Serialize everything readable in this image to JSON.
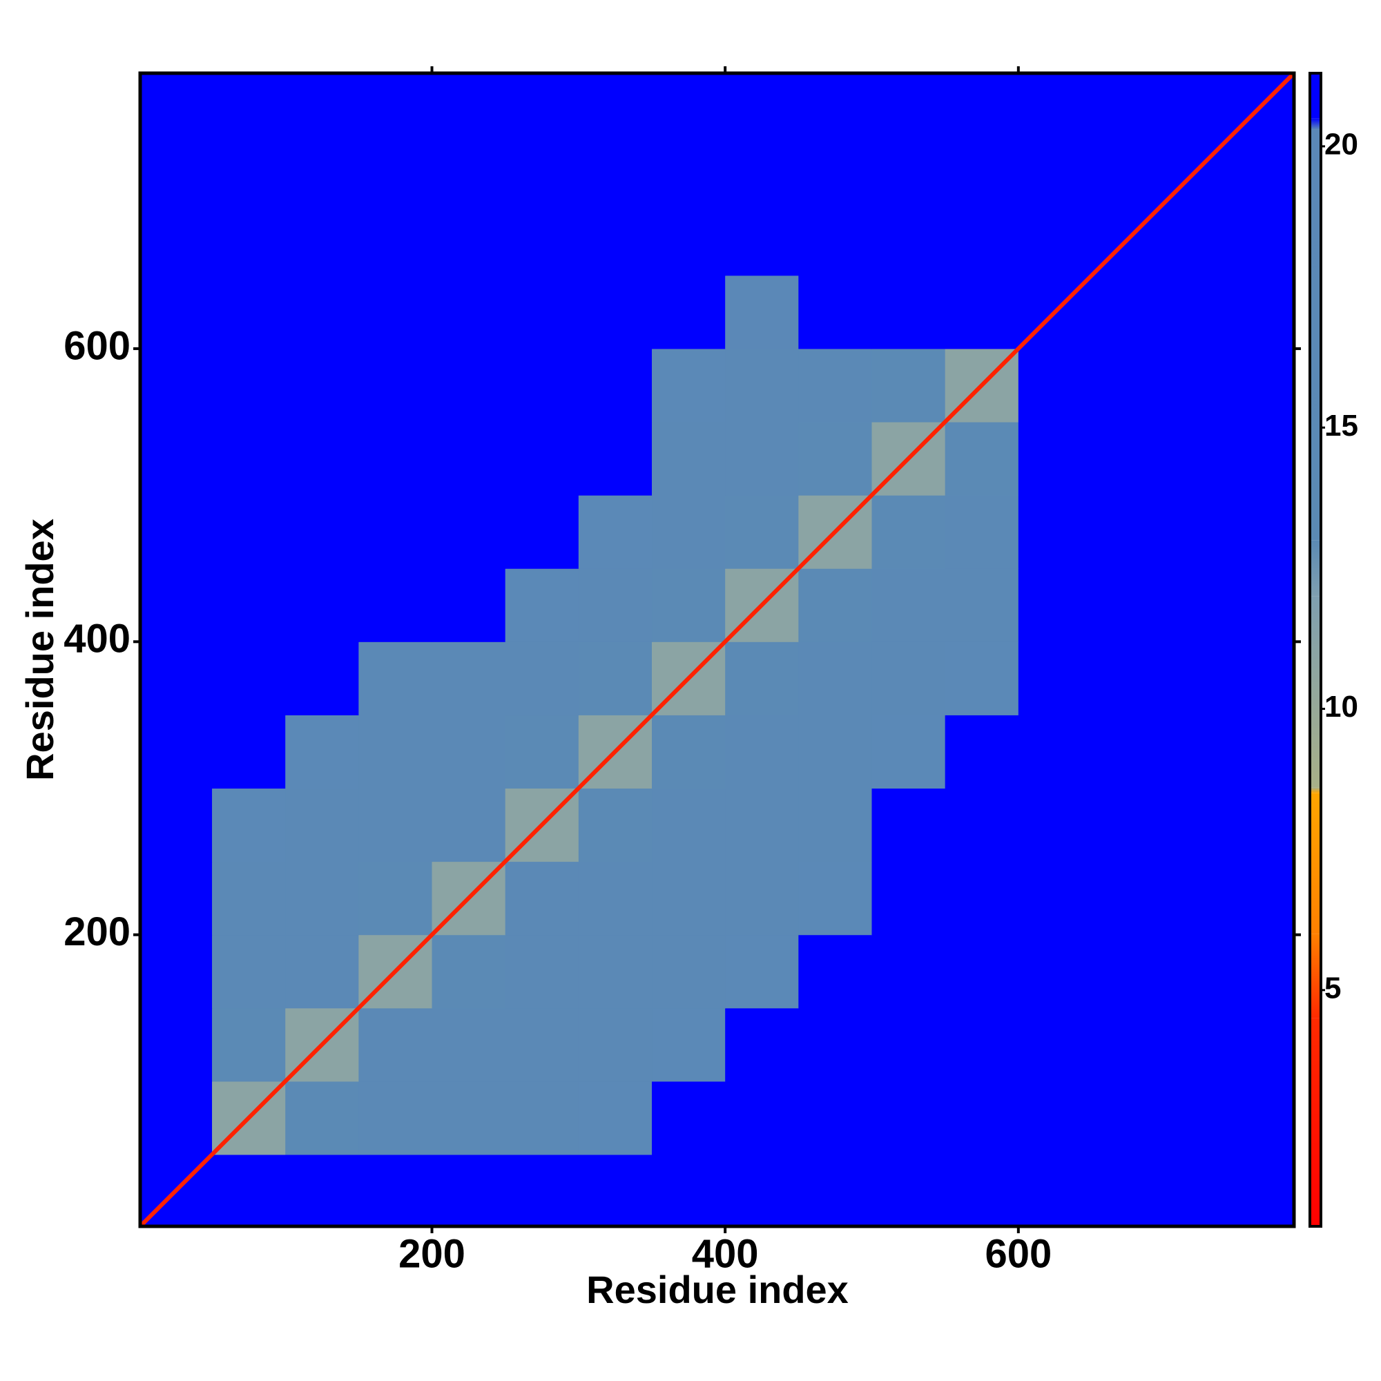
{
  "chart_data": {
    "type": "heatmap",
    "xlabel": "Residue index",
    "ylabel": "Residue index",
    "xlim": [
      1,
      788
    ],
    "ylim": [
      1,
      788
    ],
    "xticks": [
      200,
      400,
      600
    ],
    "yticks": [
      200,
      400,
      600
    ],
    "bins": [
      1,
      50,
      100,
      150,
      200,
      250,
      300,
      350,
      400,
      450,
      500,
      550,
      600,
      650,
      700,
      750,
      788
    ],
    "values": [
      [
        21,
        21,
        21,
        21,
        21,
        21,
        21,
        21,
        21,
        21,
        21,
        21,
        21,
        21,
        21,
        21
      ],
      [
        21,
        11,
        14,
        16,
        16,
        16,
        18,
        21,
        21,
        21,
        21,
        21,
        21,
        21,
        21,
        21
      ],
      [
        21,
        14,
        11,
        16,
        16,
        16,
        16,
        18,
        21,
        21,
        21,
        21,
        21,
        21,
        21,
        21
      ],
      [
        21,
        16,
        16,
        11,
        14,
        16,
        16,
        16,
        18,
        21,
        21,
        21,
        21,
        21,
        21,
        21
      ],
      [
        21,
        16,
        16,
        14,
        11,
        16,
        16,
        16,
        16,
        18,
        21,
        21,
        21,
        21,
        21,
        21
      ],
      [
        21,
        18,
        16,
        16,
        16,
        11,
        14,
        16,
        16,
        16,
        21,
        21,
        21,
        21,
        21,
        21
      ],
      [
        21,
        21,
        18,
        16,
        16,
        14,
        11,
        14,
        16,
        16,
        18,
        21,
        21,
        21,
        21,
        21
      ],
      [
        21,
        21,
        21,
        16,
        16,
        16,
        14,
        11,
        14,
        16,
        16,
        18,
        21,
        21,
        21,
        21
      ],
      [
        21,
        21,
        21,
        21,
        21,
        18,
        16,
        14,
        11,
        14,
        16,
        16,
        21,
        21,
        21,
        21
      ],
      [
        21,
        21,
        21,
        21,
        21,
        21,
        18,
        16,
        14,
        11,
        14,
        16,
        21,
        21,
        21,
        21
      ],
      [
        21,
        21,
        21,
        21,
        21,
        21,
        21,
        16,
        16,
        14,
        11,
        14,
        21,
        21,
        21,
        21
      ],
      [
        21,
        21,
        21,
        21,
        21,
        21,
        21,
        18,
        16,
        16,
        14,
        11,
        21,
        21,
        21,
        21
      ],
      [
        21,
        21,
        21,
        21,
        21,
        21,
        21,
        21,
        19,
        21,
        21,
        21,
        21,
        21,
        21,
        21
      ],
      [
        21,
        21,
        21,
        21,
        21,
        21,
        21,
        21,
        21,
        21,
        21,
        21,
        21,
        21,
        21,
        21
      ],
      [
        21,
        21,
        21,
        21,
        21,
        21,
        21,
        21,
        21,
        21,
        21,
        21,
        21,
        21,
        21,
        21
      ],
      [
        21,
        21,
        21,
        21,
        21,
        21,
        21,
        21,
        21,
        21,
        21,
        21,
        21,
        21,
        21,
        21
      ]
    ],
    "diagonal_value": 3.8,
    "colorbar": {
      "lim": [
        0.8,
        21.3
      ],
      "ticks": [
        5,
        10,
        15,
        20
      ],
      "stops": [
        {
          "value": 0.8,
          "color": "#ff0000"
        },
        {
          "value": 4.5,
          "color": "#ff2a00"
        },
        {
          "value": 6,
          "color": "#ff8000"
        },
        {
          "value": 8.5,
          "color": "#ffa500"
        },
        {
          "value": 8.6,
          "color": "#a8b088"
        },
        {
          "value": 12,
          "color": "#7f9fb0"
        },
        {
          "value": 13,
          "color": "#5b8ab4"
        },
        {
          "value": 20.3,
          "color": "#5b88b8"
        },
        {
          "value": 20.5,
          "color": "#0000ff"
        },
        {
          "value": 21.3,
          "color": "#0000ff"
        }
      ]
    }
  }
}
